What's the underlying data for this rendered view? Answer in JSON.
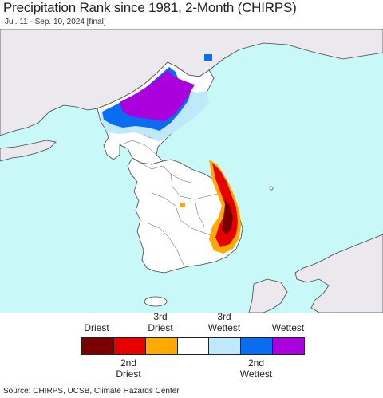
{
  "title": "Precipitation Rank since 1981, 2-Month (CHIRPS)",
  "subtitle": "Jul. 11 - Sep. 10, 2024 [final]",
  "colors": {
    "sea": "#c8f8f8",
    "land": "#ffffff",
    "foreign_land": "#ece9ee",
    "border": "#444444"
  },
  "legend": {
    "top_labels": [
      {
        "line1": "",
        "line2": "Driest"
      },
      {
        "line1": "3rd",
        "line2": "Driest"
      },
      {
        "line1": "3rd",
        "line2": "Wettest"
      },
      {
        "line1": "",
        "line2": "Wettest"
      }
    ],
    "bottom_labels": [
      {
        "line1": "2nd",
        "line2": "Driest"
      },
      {
        "line1": "2nd",
        "line2": "Wettest"
      }
    ],
    "swatches": [
      {
        "name": "driest",
        "color": "#7a0000"
      },
      {
        "name": "2nd-driest",
        "color": "#e60000"
      },
      {
        "name": "3rd-driest",
        "color": "#ffaa00"
      },
      {
        "name": "normal",
        "color": "#ffffff"
      },
      {
        "name": "3rd-wettest",
        "color": "#bfe8fa"
      },
      {
        "name": "2nd-wettest",
        "color": "#0a6cf0"
      },
      {
        "name": "wettest",
        "color": "#aa00dd"
      }
    ]
  },
  "source": "Source: CHIRPS, UCSB, Climate Hazards Center"
}
